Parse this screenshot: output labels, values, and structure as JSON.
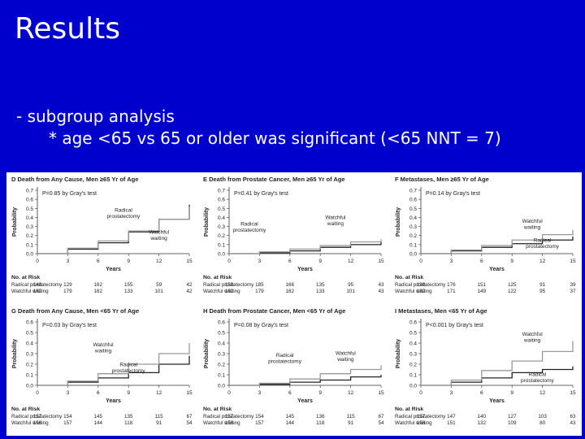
{
  "slide": {
    "title": "Results",
    "bullet1": "- subgroup analysis",
    "bullet2": "* age <65 vs 65 or older was significant (<65 NNT = 7)"
  },
  "chart_data": [
    {
      "id": "D",
      "type": "line",
      "title": "D  Death from Any Cause, Men ≥65 Yr of Age",
      "xlabel": "Years",
      "ylabel": "Probability",
      "xlim": [
        0,
        15
      ],
      "ylim": [
        0,
        0.7
      ],
      "xticks": [
        0,
        3,
        6,
        9,
        12,
        15
      ],
      "yticks": [
        0,
        0.1,
        0.2,
        0.3,
        0.4,
        0.5,
        0.6,
        0.7
      ],
      "pvalue": "P=0.85 by Gray's test",
      "series": [
        {
          "name": "Radical prostatectomy",
          "color": "#222222",
          "x": [
            0,
            3,
            6,
            9,
            12,
            15
          ],
          "y": [
            0,
            0.05,
            0.12,
            0.24,
            0.38,
            0.54
          ]
        },
        {
          "name": "Watchful waiting",
          "color": "#999999",
          "x": [
            0,
            3,
            6,
            9,
            12,
            15
          ],
          "y": [
            0,
            0.06,
            0.14,
            0.25,
            0.38,
            0.52
          ]
        }
      ],
      "labels": [
        {
          "text": "Radical prostatectomy",
          "x": 8.5,
          "y": 0.46
        },
        {
          "text": "Watchful waiting",
          "x": 12,
          "y": 0.22
        }
      ],
      "risk": {
        "header": "No. at Risk",
        "rows": [
          {
            "label": "Radical prostatectomy",
            "values": [
              "140",
              "129",
              "162",
              "155",
              "59",
              "42"
            ]
          },
          {
            "label": "Watchful waiting",
            "values": [
              "182",
              "179",
              "162",
              "133",
              "101",
              "42"
            ]
          }
        ]
      }
    },
    {
      "id": "E",
      "type": "line",
      "title": "E  Death from Prostate Cancer, Men ≥65 Yr of Age",
      "xlabel": "Years",
      "ylabel": "Probability",
      "xlim": [
        0,
        15
      ],
      "ylim": [
        0,
        0.7
      ],
      "xticks": [
        0,
        3,
        6,
        9,
        12,
        15
      ],
      "yticks": [
        0,
        0.1,
        0.2,
        0.3,
        0.4,
        0.5,
        0.6,
        0.7
      ],
      "pvalue": "P=0.41 by Gray's test",
      "series": [
        {
          "name": "Radical prostatectomy",
          "color": "#222222",
          "x": [
            0,
            3,
            6,
            9,
            12,
            15
          ],
          "y": [
            0,
            0.01,
            0.03,
            0.07,
            0.1,
            0.13
          ]
        },
        {
          "name": "Watchful waiting",
          "color": "#999999",
          "x": [
            0,
            3,
            6,
            9,
            12,
            15
          ],
          "y": [
            0,
            0.02,
            0.05,
            0.09,
            0.13,
            0.16
          ]
        }
      ],
      "labels": [
        {
          "text": "Radical prostatectomy",
          "x": 2,
          "y": 0.31
        },
        {
          "text": "Watchful waiting",
          "x": 10.5,
          "y": 0.38
        }
      ],
      "risk": {
        "header": "No. at Risk",
        "rows": [
          {
            "label": "Radical prostatectomy",
            "values": [
              "150",
              "185",
              "166",
              "135",
              "95",
              "43"
            ]
          },
          {
            "label": "Watchful waiting",
            "values": [
              "182",
              "179",
              "162",
              "133",
              "101",
              "43"
            ]
          }
        ]
      }
    },
    {
      "id": "F",
      "type": "line",
      "title": "F  Metastases, Men ≥65 Yr of Age",
      "xlabel": "Years",
      "ylabel": "Probability",
      "xlim": [
        0,
        15
      ],
      "ylim": [
        0,
        0.7
      ],
      "xticks": [
        0,
        3,
        6,
        9,
        12,
        15
      ],
      "yticks": [
        0,
        0.1,
        0.2,
        0.3,
        0.4,
        0.5,
        0.6,
        0.7
      ],
      "pvalue": "P=0.14 by Gray's test",
      "series": [
        {
          "name": "Radical prostatectomy",
          "color": "#222222",
          "x": [
            0,
            3,
            6,
            9,
            12,
            15
          ],
          "y": [
            0,
            0.03,
            0.07,
            0.11,
            0.15,
            0.19
          ]
        },
        {
          "name": "Watchful waiting",
          "color": "#999999",
          "x": [
            0,
            3,
            6,
            9,
            12,
            15
          ],
          "y": [
            0,
            0.04,
            0.09,
            0.15,
            0.21,
            0.26
          ]
        }
      ],
      "labels": [
        {
          "text": "Watchful waiting",
          "x": 11,
          "y": 0.34
        },
        {
          "text": "Radical prostatectomy",
          "x": 12,
          "y": 0.13
        }
      ],
      "risk": {
        "header": "No. at Risk",
        "rows": [
          {
            "label": "Radical prostatectomy",
            "values": [
              "190",
              "176",
              "151",
              "125",
              "91",
              "39"
            ]
          },
          {
            "label": "Watchful waiting",
            "values": [
              "182",
              "171",
              "149",
              "122",
              "95",
              "37"
            ]
          }
        ]
      }
    },
    {
      "id": "G",
      "type": "line",
      "title": "G  Death from Any Cause, Men <65 Yr of Age",
      "xlabel": "Years",
      "ylabel": "Probability",
      "xlim": [
        0,
        15
      ],
      "ylim": [
        0,
        0.6
      ],
      "xticks": [
        0,
        3,
        6,
        9,
        12,
        15
      ],
      "yticks": [
        0,
        0.1,
        0.2,
        0.3,
        0.4,
        0.5,
        0.6
      ],
      "pvalue": "P=0.03 by Gray's test",
      "series": [
        {
          "name": "Radical prostatectomy",
          "color": "#222222",
          "x": [
            0,
            3,
            6,
            9,
            12,
            15
          ],
          "y": [
            0,
            0.03,
            0.07,
            0.12,
            0.2,
            0.28
          ]
        },
        {
          "name": "Watchful waiting",
          "color": "#999999",
          "x": [
            0,
            3,
            6,
            9,
            12,
            15
          ],
          "y": [
            0,
            0.04,
            0.11,
            0.2,
            0.3,
            0.4
          ]
        }
      ],
      "labels": [
        {
          "text": "Watchful waiting",
          "x": 6.5,
          "y": 0.37
        },
        {
          "text": "Radical prostatectomy",
          "x": 9,
          "y": 0.18
        }
      ],
      "risk": {
        "header": "No. at Risk",
        "rows": [
          {
            "label": "Radical prostatectomy",
            "values": [
              "157",
              "154",
              "145",
              "135",
              "115",
              "67"
            ]
          },
          {
            "label": "Watchful waiting",
            "values": [
              "156",
              "157",
              "144",
              "118",
              "91",
              "54"
            ]
          }
        ]
      }
    },
    {
      "id": "H",
      "type": "line",
      "title": "H  Death from Prostate Cancer, Men <65 Yr of Age",
      "xlabel": "Years",
      "ylabel": "Probability",
      "xlim": [
        0,
        15
      ],
      "ylim": [
        0,
        0.6
      ],
      "xticks": [
        0,
        3,
        6,
        9,
        12,
        15
      ],
      "yticks": [
        0,
        0.1,
        0.2,
        0.3,
        0.4,
        0.5,
        0.6
      ],
      "pvalue": "P=0.08 by Gray's test",
      "series": [
        {
          "name": "Radical prostatectomy",
          "color": "#222222",
          "x": [
            0,
            3,
            6,
            9,
            12,
            15
          ],
          "y": [
            0,
            0.01,
            0.03,
            0.05,
            0.08,
            0.1
          ]
        },
        {
          "name": "Watchful waiting",
          "color": "#999999",
          "x": [
            0,
            3,
            6,
            9,
            12,
            15
          ],
          "y": [
            0,
            0.02,
            0.06,
            0.11,
            0.15,
            0.19
          ]
        }
      ],
      "labels": [
        {
          "text": "Radical prostatectomy",
          "x": 5.5,
          "y": 0.27
        },
        {
          "text": "Watchful waiting",
          "x": 11.5,
          "y": 0.29
        }
      ],
      "risk": {
        "header": "No. at Risk",
        "rows": [
          {
            "label": "Radical prostatectomy",
            "values": [
              "157",
              "154",
              "145",
              "136",
              "115",
              "67"
            ]
          },
          {
            "label": "Watchful waiting",
            "values": [
              "156",
              "157",
              "144",
              "118",
              "91",
              "54"
            ]
          }
        ]
      }
    },
    {
      "id": "I",
      "type": "line",
      "title": "I  Metastases, Men <65 Yr of Age",
      "xlabel": "Years",
      "ylabel": "Probability",
      "xlim": [
        0,
        15
      ],
      "ylim": [
        0,
        0.6
      ],
      "xticks": [
        0,
        3,
        6,
        9,
        12,
        15
      ],
      "yticks": [
        0,
        0.1,
        0.2,
        0.3,
        0.4,
        0.5,
        0.6
      ],
      "pvalue": "P<0.001 by Gray's test",
      "series": [
        {
          "name": "Radical prostatectomy",
          "color": "#222222",
          "x": [
            0,
            3,
            6,
            9,
            12,
            15
          ],
          "y": [
            0,
            0.03,
            0.07,
            0.12,
            0.15,
            0.18
          ]
        },
        {
          "name": "Watchful waiting",
          "color": "#999999",
          "x": [
            0,
            3,
            6,
            9,
            12,
            15
          ],
          "y": [
            0,
            0.05,
            0.14,
            0.23,
            0.32,
            0.42
          ]
        }
      ],
      "labels": [
        {
          "text": "Watchful waiting",
          "x": 11,
          "y": 0.47
        },
        {
          "text": "Radical prostatectomy",
          "x": 11.5,
          "y": 0.09
        }
      ],
      "risk": {
        "header": "No. at Risk",
        "rows": [
          {
            "label": "Radical prostatectomy",
            "values": [
              "157",
              "147",
              "140",
              "127",
              "103",
              "63"
            ]
          },
          {
            "label": "Watchful waiting",
            "values": [
              "156",
              "151",
              "132",
              "109",
              "80",
              "43"
            ]
          }
        ]
      }
    }
  ]
}
